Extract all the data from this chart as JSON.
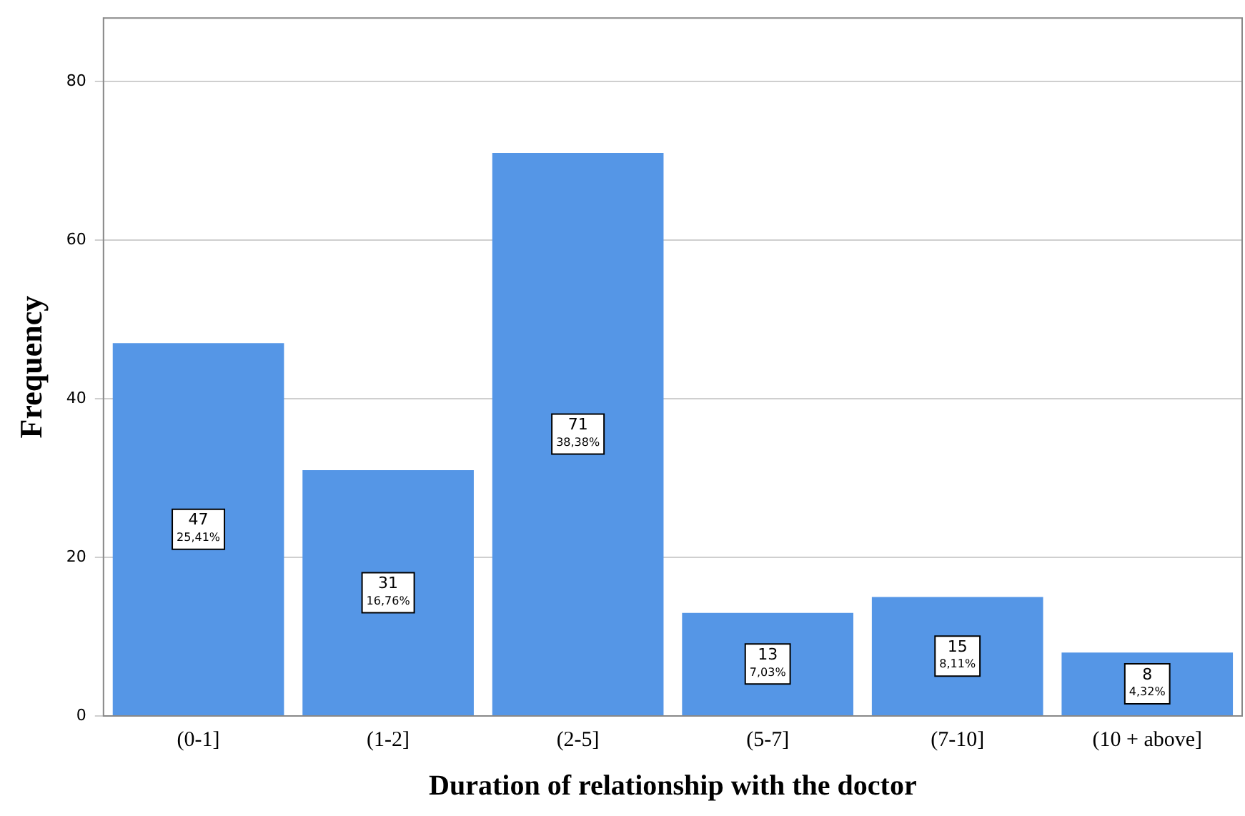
{
  "chart_data": {
    "type": "bar",
    "xlabel": "Duration of relationship with the doctor",
    "ylabel": "Frequency",
    "categories": [
      "(0-1]",
      "(1-2]",
      "(2-5]",
      "(5-7]",
      "(7-10]",
      "(10 + above]"
    ],
    "values": [
      47,
      31,
      71,
      13,
      15,
      8
    ],
    "value_labels": [
      "47\n25,41%",
      "31\n16,76%",
      "71\n38,38%",
      "13\n7,03%",
      "15\n8,11%",
      "8\n4,32%"
    ],
    "color": "#5596e6",
    "ylim": [
      0,
      88
    ],
    "yticks": [
      0,
      20,
      40,
      60,
      80
    ],
    "grid": "y"
  }
}
